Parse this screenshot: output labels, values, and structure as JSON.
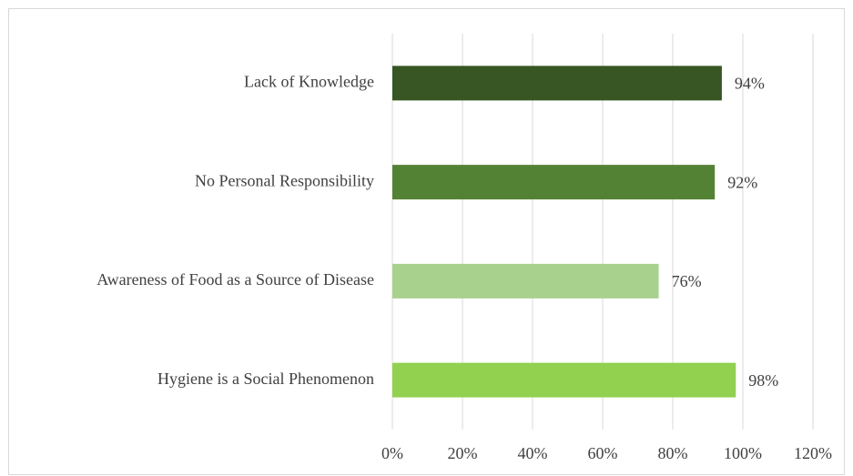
{
  "chart_data": {
    "type": "hbar",
    "categories": [
      "Lack of Knowledge",
      "No Personal Responsibility",
      "Awareness of Food as a Source of Disease",
      "Hygiene is a Social Phenomenon"
    ],
    "values": [
      94,
      92,
      76,
      98
    ],
    "value_labels": [
      "94%",
      "92%",
      "76%",
      "98%"
    ],
    "colors": [
      "#375623",
      "#548235",
      "#a9d18e",
      "#92d050"
    ],
    "xlim": [
      0,
      120
    ],
    "xticks": [
      {
        "value": 0,
        "label": "0%"
      },
      {
        "value": 20,
        "label": "20%"
      },
      {
        "value": 40,
        "label": "40%"
      },
      {
        "value": 60,
        "label": "60%"
      },
      {
        "value": 80,
        "label": "80%"
      },
      {
        "value": 100,
        "label": "100%"
      },
      {
        "value": 120,
        "label": "120%"
      }
    ],
    "grid": true
  }
}
